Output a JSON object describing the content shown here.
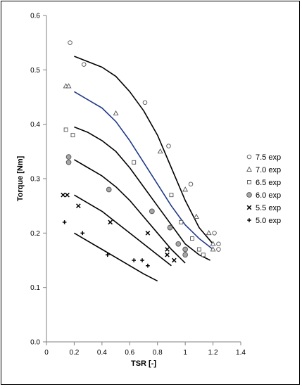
{
  "chart_data": {
    "type": "scatter",
    "xlabel": "TSR [-]",
    "ylabel": "Torque [Nm]",
    "xlim": [
      0,
      1.4
    ],
    "ylim": [
      0,
      0.6
    ],
    "xticks": [
      "0",
      "0.2",
      "0.4",
      "0.6",
      "0.8",
      "1",
      "1.2",
      "1.4"
    ],
    "yticks": [
      "0.0",
      "0.1",
      "0.2",
      "0.3",
      "0.4",
      "0.5",
      "0.6"
    ],
    "grid": false,
    "legend_position": "right",
    "series": [
      {
        "name": "7.5 exp",
        "marker": "circle",
        "points": [
          [
            0.17,
            0.55
          ],
          [
            0.27,
            0.51
          ],
          [
            0.71,
            0.44
          ],
          [
            0.88,
            0.36
          ],
          [
            1.04,
            0.29
          ],
          [
            1.21,
            0.2
          ],
          [
            1.24,
            0.18
          ],
          [
            1.24,
            0.17
          ]
        ],
        "curve": [
          [
            0.2,
            0.525
          ],
          [
            0.4,
            0.505
          ],
          [
            0.5,
            0.488
          ],
          [
            0.6,
            0.46
          ],
          [
            0.7,
            0.425
          ],
          [
            0.8,
            0.38
          ],
          [
            0.9,
            0.32
          ],
          [
            1.0,
            0.26
          ],
          [
            1.1,
            0.21
          ],
          [
            1.2,
            0.18
          ]
        ],
        "curve_color": "#000000"
      },
      {
        "name": "7.0 exp",
        "marker": "triangle",
        "points": [
          [
            0.14,
            0.47
          ],
          [
            0.16,
            0.47
          ],
          [
            0.5,
            0.42
          ],
          [
            0.82,
            0.35
          ],
          [
            1.0,
            0.28
          ],
          [
            1.08,
            0.23
          ],
          [
            1.17,
            0.2
          ],
          [
            1.2,
            0.18
          ],
          [
            1.2,
            0.17
          ]
        ],
        "curve": [
          [
            0.2,
            0.46
          ],
          [
            0.3,
            0.445
          ],
          [
            0.4,
            0.43
          ],
          [
            0.5,
            0.405
          ],
          [
            0.6,
            0.37
          ],
          [
            0.7,
            0.33
          ],
          [
            0.8,
            0.29
          ],
          [
            0.9,
            0.25
          ],
          [
            1.0,
            0.215
          ],
          [
            1.1,
            0.19
          ],
          [
            1.2,
            0.17
          ]
        ],
        "curve_color": "#1f3a8a"
      },
      {
        "name": "6.5 exp",
        "marker": "square",
        "points": [
          [
            0.14,
            0.39
          ],
          [
            0.19,
            0.38
          ],
          [
            0.63,
            0.33
          ],
          [
            0.9,
            0.27
          ],
          [
            0.97,
            0.22
          ],
          [
            1.05,
            0.19
          ],
          [
            1.1,
            0.17
          ],
          [
            1.13,
            0.16
          ]
        ],
        "curve": [
          [
            0.2,
            0.395
          ],
          [
            0.3,
            0.385
          ],
          [
            0.4,
            0.37
          ],
          [
            0.5,
            0.35
          ],
          [
            0.6,
            0.32
          ],
          [
            0.7,
            0.285
          ],
          [
            0.8,
            0.25
          ],
          [
            0.9,
            0.215
          ],
          [
            1.0,
            0.18
          ],
          [
            1.1,
            0.16
          ],
          [
            1.18,
            0.15
          ]
        ],
        "curve_color": "#000000"
      },
      {
        "name": "6.0 exp",
        "marker": "circle-filled",
        "points": [
          [
            0.16,
            0.34
          ],
          [
            0.16,
            0.33
          ],
          [
            0.45,
            0.28
          ],
          [
            0.76,
            0.24
          ],
          [
            0.89,
            0.21
          ],
          [
            0.95,
            0.18
          ],
          [
            1.0,
            0.17
          ],
          [
            1.0,
            0.16
          ]
        ],
        "curve": [
          [
            0.2,
            0.335
          ],
          [
            0.3,
            0.32
          ],
          [
            0.4,
            0.305
          ],
          [
            0.5,
            0.285
          ],
          [
            0.6,
            0.26
          ],
          [
            0.7,
            0.23
          ],
          [
            0.8,
            0.2
          ],
          [
            0.9,
            0.17
          ],
          [
            1.0,
            0.145
          ]
        ],
        "curve_color": "#000000"
      },
      {
        "name": "5.5 exp",
        "marker": "x",
        "points": [
          [
            0.12,
            0.27
          ],
          [
            0.15,
            0.27
          ],
          [
            0.23,
            0.25
          ],
          [
            0.46,
            0.22
          ],
          [
            0.73,
            0.2
          ],
          [
            0.87,
            0.17
          ],
          [
            0.87,
            0.16
          ],
          [
            0.92,
            0.15
          ]
        ],
        "curve": [
          [
            0.2,
            0.27
          ],
          [
            0.3,
            0.255
          ],
          [
            0.4,
            0.24
          ],
          [
            0.5,
            0.22
          ],
          [
            0.6,
            0.2
          ],
          [
            0.7,
            0.18
          ],
          [
            0.8,
            0.16
          ],
          [
            0.9,
            0.14
          ]
        ],
        "curve_color": "#000000"
      },
      {
        "name": "5.0 exp",
        "marker": "plus",
        "points": [
          [
            0.13,
            0.22
          ],
          [
            0.26,
            0.2
          ],
          [
            0.44,
            0.16
          ],
          [
            0.63,
            0.15
          ],
          [
            0.69,
            0.15
          ],
          [
            0.73,
            0.14
          ]
        ],
        "curve": [
          [
            0.2,
            0.2
          ],
          [
            0.3,
            0.185
          ],
          [
            0.4,
            0.17
          ],
          [
            0.5,
            0.155
          ],
          [
            0.6,
            0.14
          ],
          [
            0.7,
            0.125
          ],
          [
            0.8,
            0.112
          ]
        ],
        "curve_color": "#000000"
      }
    ]
  }
}
